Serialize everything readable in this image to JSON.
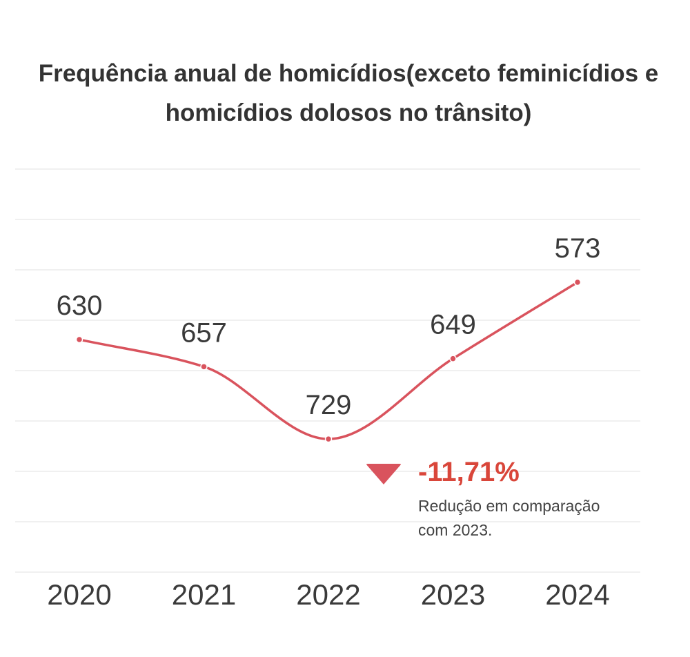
{
  "chart_data": {
    "type": "line",
    "title": "Frequência anual de homicídios(exceto feminicídios e homicídios dolosos no trânsito)",
    "categories": [
      "2020",
      "2021",
      "2022",
      "2023",
      "2024"
    ],
    "values": [
      630,
      657,
      729,
      649,
      573
    ],
    "data_labels": [
      "630",
      "657",
      "729",
      "649",
      "573"
    ],
    "xlabel": "",
    "ylabel": "",
    "ylim": [
      550,
      750
    ],
    "grid": true,
    "legend": "none",
    "line_color": "#d9535d",
    "smooth": true,
    "annotation": {
      "value": "-11,71%",
      "text": "Redução em comparação com 2023.",
      "value_color": "#d9463a",
      "icon": "down-arrow-icon"
    }
  }
}
